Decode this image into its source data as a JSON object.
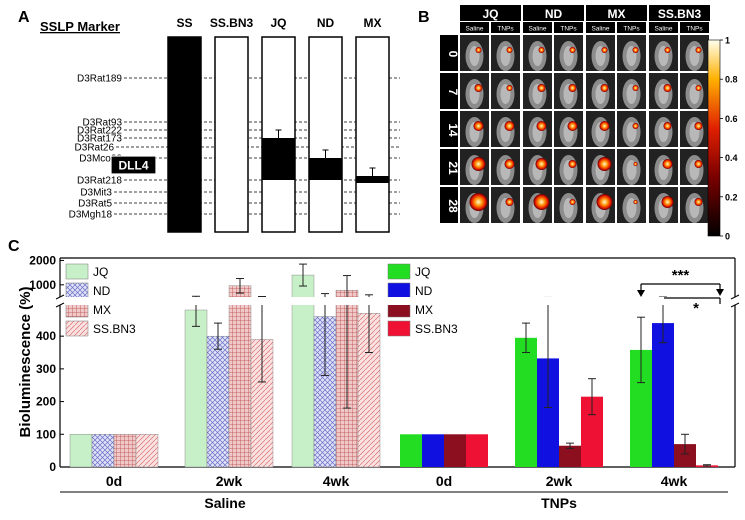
{
  "panels": {
    "A": "A",
    "B": "B",
    "C": "C"
  },
  "panel_a": {
    "header": "SSLP Marker",
    "strains": [
      "SS",
      "SS.BN3",
      "JQ",
      "ND",
      "MX"
    ],
    "markers": [
      "D3Rat189",
      "D3Rat93",
      "D3Rat222",
      "D3Rat173",
      "D3Rat26",
      "D3Mco33",
      "D3Rat218",
      "D3Mit3",
      "D3Rat5",
      "D3Mgh18"
    ],
    "gene_label": "DLL4",
    "bn_region": {
      "JQ": {
        "start": "D3Rat173",
        "end": "D3Rat218"
      },
      "ND": {
        "start": "D3Mco33",
        "end": "D3Rat218"
      },
      "MX": {
        "start": "D3Rat218",
        "end": "D3Rat218"
      }
    }
  },
  "panel_b": {
    "strains": [
      "JQ",
      "ND",
      "MX",
      "SS.BN3"
    ],
    "treatments": [
      "Saline",
      "TNPs"
    ],
    "days": [
      "0",
      "7",
      "14",
      "21",
      "28"
    ],
    "colorbar_ticks": [
      "1",
      "0.8",
      "0.6",
      "0.4",
      "0.2",
      "0"
    ],
    "colors": {
      "header_bg": "#000000",
      "header_text": "#ffffff",
      "cell_bg": "#222222"
    }
  },
  "chart_data": {
    "type": "bar",
    "ylabel": "Bioluminescence (%)",
    "y_ticks_lower": [
      "0",
      "100",
      "200",
      "300",
      "400"
    ],
    "y_ticks_upper": [
      "1000",
      "2000"
    ],
    "ylim_lower": [
      0,
      480
    ],
    "ylim_upper": [
      500,
      2100
    ],
    "groups": [
      {
        "name": "Saline",
        "categories": [
          "0d",
          "2wk",
          "4wk"
        ],
        "series": [
          {
            "name": "JQ",
            "color": "#c8f0c8",
            "pattern": "solid",
            "values": [
              100,
              480,
              1400
            ],
            "errors": [
              0,
              50,
              450
            ]
          },
          {
            "name": "ND",
            "color": "#b8bce8",
            "pattern": "cross",
            "values": [
              100,
              400,
              460
            ],
            "errors": [
              0,
              40,
              180
            ]
          },
          {
            "name": "MX",
            "color": "#e8a0a0",
            "pattern": "grid",
            "values": [
              100,
              960,
              780
            ],
            "errors": [
              0,
              300,
              600
            ]
          },
          {
            "name": "SS.BN3",
            "color": "#f4c0c0",
            "pattern": "diag",
            "values": [
              100,
              390,
              470
            ],
            "errors": [
              0,
              130,
              120
            ]
          }
        ]
      },
      {
        "name": "TNPs",
        "categories": [
          "0d",
          "2wk",
          "4wk"
        ],
        "series": [
          {
            "name": "JQ",
            "color": "#22dd22",
            "pattern": "solid",
            "values": [
              100,
              395,
              358
            ],
            "errors": [
              0,
              45,
              100
            ]
          },
          {
            "name": "ND",
            "color": "#1010e0",
            "pattern": "solid",
            "values": [
              100,
              332,
              440
            ],
            "errors": [
              0,
              150,
              60
            ]
          },
          {
            "name": "MX",
            "color": "#8b0f1f",
            "pattern": "solid",
            "values": [
              100,
              65,
              70
            ],
            "errors": [
              0,
              8,
              30
            ]
          },
          {
            "name": "SS.BN3",
            "color": "#ee1133",
            "pattern": "solid",
            "values": [
              100,
              215,
              5
            ],
            "errors": [
              0,
              55,
              2
            ]
          }
        ]
      }
    ],
    "significance": [
      "***",
      "*"
    ]
  }
}
